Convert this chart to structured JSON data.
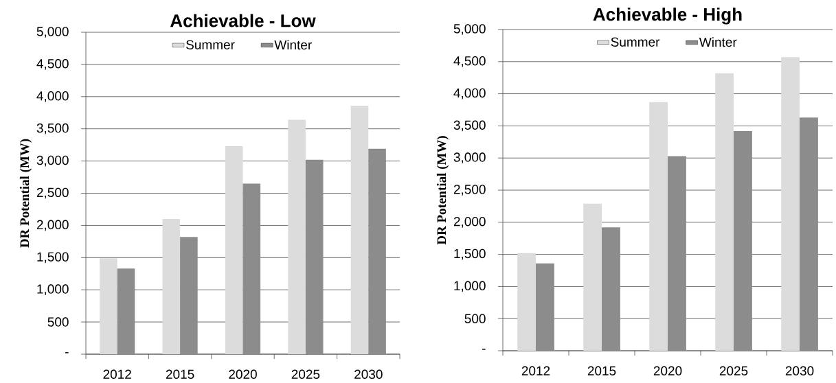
{
  "chart_data": [
    {
      "type": "bar",
      "title": "Achievable - Low",
      "ylabel": "DR Potential (MW)",
      "categories": [
        "2012",
        "2015",
        "2020",
        "2025",
        "2030"
      ],
      "series": [
        {
          "name": "Summer",
          "color": "#dcdcdc",
          "values": [
            1490,
            2100,
            3230,
            3640,
            3860
          ]
        },
        {
          "name": "Winter",
          "color": "#8c8c8c",
          "values": [
            1330,
            1820,
            2650,
            3020,
            3190
          ]
        }
      ],
      "ylim": [
        0,
        5000
      ],
      "yticks": [
        {
          "value": 0,
          "label": "-"
        },
        500,
        {
          "value": 1000,
          "label": "1,000"
        },
        {
          "value": 1500,
          "label": "1,500"
        },
        {
          "value": 2000,
          "label": "2,000"
        },
        {
          "value": 2500,
          "label": "2,500"
        },
        {
          "value": 3000,
          "label": "3,000"
        },
        {
          "value": 3500,
          "label": "3,500"
        },
        {
          "value": 4000,
          "label": "4,000"
        },
        {
          "value": 4500,
          "label": "4,500"
        },
        {
          "value": 5000,
          "label": "5,000"
        }
      ],
      "grid": "y",
      "legend": "top"
    },
    {
      "type": "bar",
      "title": "Achievable - High",
      "ylabel": "DR Potential (MW)",
      "categories": [
        "2012",
        "2015",
        "2020",
        "2025",
        "2030"
      ],
      "series": [
        {
          "name": "Summer",
          "color": "#dcdcdc",
          "values": [
            1520,
            2290,
            3870,
            4320,
            4570
          ]
        },
        {
          "name": "Winter",
          "color": "#8c8c8c",
          "values": [
            1360,
            1920,
            3030,
            3420,
            3630
          ]
        }
      ],
      "ylim": [
        0,
        5000
      ],
      "yticks": [
        {
          "value": 0,
          "label": "-"
        },
        500,
        {
          "value": 1000,
          "label": "1,000"
        },
        {
          "value": 1500,
          "label": "1,500"
        },
        {
          "value": 2000,
          "label": "2,000"
        },
        {
          "value": 2500,
          "label": "2,500"
        },
        {
          "value": 3000,
          "label": "3,000"
        },
        {
          "value": 3500,
          "label": "3,500"
        },
        {
          "value": 4000,
          "label": "4,000"
        },
        {
          "value": 4500,
          "label": "4,500"
        },
        {
          "value": 5000,
          "label": "5,000"
        }
      ],
      "grid": "y",
      "legend": "top"
    }
  ]
}
